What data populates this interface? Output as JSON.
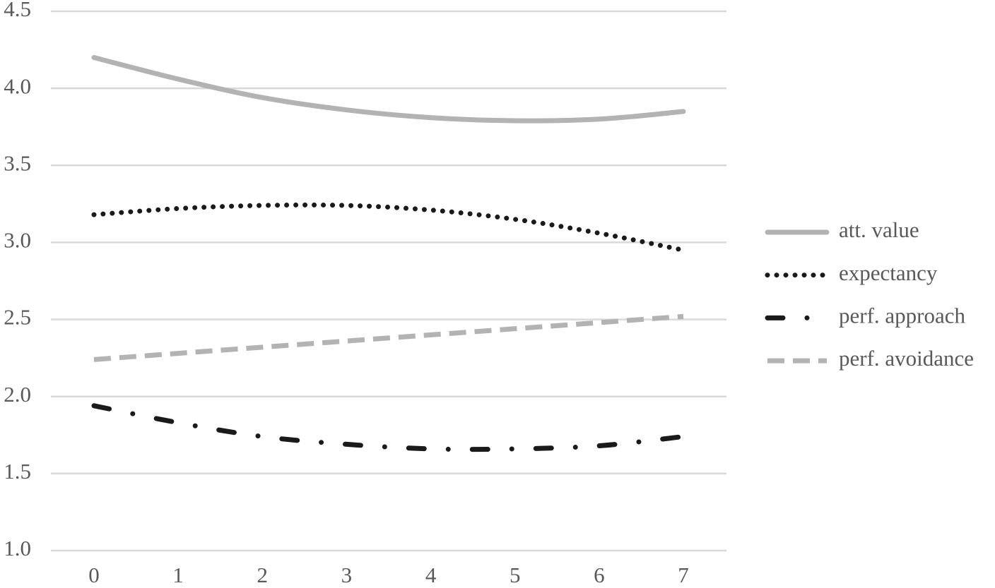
{
  "chart_data": {
    "type": "line",
    "categories": [
      "0",
      "1",
      "2",
      "3",
      "4",
      "5",
      "6",
      "7"
    ],
    "series": [
      {
        "name": "att. value",
        "color": "#b3b3b3",
        "dash": "solid",
        "values": [
          4.2,
          4.06,
          3.94,
          3.86,
          3.81,
          3.79,
          3.8,
          3.85
        ]
      },
      {
        "name": "expectancy",
        "color": "#1a1a1a",
        "dash": "dot",
        "values": [
          3.18,
          3.22,
          3.24,
          3.24,
          3.21,
          3.15,
          3.06,
          2.95
        ]
      },
      {
        "name": "perf. approach",
        "color": "#1a1a1a",
        "dash": "dashdot",
        "values": [
          1.94,
          1.83,
          1.74,
          1.69,
          1.66,
          1.66,
          1.68,
          1.74
        ]
      },
      {
        "name": "perf. avoidance",
        "color": "#b3b3b3",
        "dash": "dash",
        "values": [
          2.24,
          2.28,
          2.32,
          2.36,
          2.4,
          2.44,
          2.48,
          2.52
        ]
      }
    ],
    "ylim": [
      1,
      4.5
    ],
    "yticks": [
      {
        "value": 1,
        "label": "1.0"
      },
      1.5,
      {
        "value": 2,
        "label": "2.0"
      },
      2.5,
      {
        "value": 3,
        "label": "3.0"
      },
      3.5,
      {
        "value": 4,
        "label": "4.0"
      },
      4.5
    ],
    "grid": true,
    "legend": "right"
  }
}
